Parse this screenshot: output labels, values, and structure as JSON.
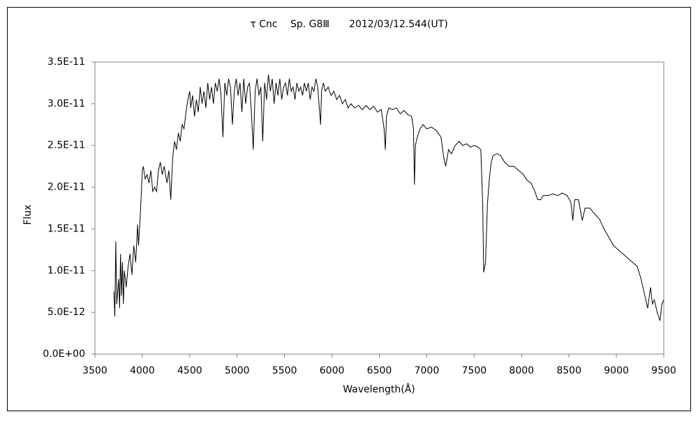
{
  "chart_data": {
    "type": "line",
    "title": "τ Cnc　 Sp. G8Ⅲ　　2012/03/12.544(UT)",
    "x_label": "Wavelength(Å)",
    "y_label": "Flux",
    "color": "#000000",
    "xlim": [
      3500,
      9500
    ],
    "xticks": [
      3500,
      4000,
      4500,
      5000,
      5500,
      6000,
      6500,
      7000,
      7500,
      8000,
      8500,
      9000,
      9500
    ],
    "ylim": [
      0,
      3.5e-11
    ],
    "yticks": [
      {
        "value": 0,
        "label": "0.0E+00"
      },
      {
        "value": 5e-12,
        "label": "5.0E-12"
      },
      {
        "value": 1e-11,
        "label": "1.0E-11"
      },
      {
        "value": 1.5e-11,
        "label": "1.5E-11"
      },
      {
        "value": 2e-11,
        "label": "2.0E-11"
      },
      {
        "value": 2.5e-11,
        "label": "2.5E-11"
      },
      {
        "value": 3e-11,
        "label": "3.0E-11"
      },
      {
        "value": 3.5e-11,
        "label": "3.5E-11"
      }
    ],
    "x": [
      3700,
      3710,
      3720,
      3730,
      3750,
      3760,
      3770,
      3780,
      3790,
      3800,
      3810,
      3830,
      3850,
      3870,
      3890,
      3910,
      3930,
      3950,
      3960,
      3980,
      4000,
      4010,
      4030,
      4050,
      4070,
      4090,
      4110,
      4130,
      4150,
      4170,
      4190,
      4210,
      4230,
      4260,
      4280,
      4300,
      4320,
      4340,
      4360,
      4380,
      4400,
      4420,
      4440,
      4460,
      4480,
      4500,
      4510,
      4530,
      4550,
      4570,
      4590,
      4610,
      4630,
      4650,
      4670,
      4690,
      4710,
      4730,
      4750,
      4770,
      4790,
      4810,
      4830,
      4850,
      4870,
      4890,
      4910,
      4930,
      4950,
      4970,
      4990,
      5010,
      5030,
      5050,
      5070,
      5090,
      5110,
      5130,
      5150,
      5170,
      5190,
      5210,
      5230,
      5250,
      5270,
      5290,
      5310,
      5330,
      5350,
      5370,
      5390,
      5410,
      5430,
      5450,
      5470,
      5490,
      5510,
      5530,
      5550,
      5570,
      5590,
      5610,
      5630,
      5650,
      5670,
      5690,
      5710,
      5730,
      5750,
      5770,
      5790,
      5810,
      5830,
      5850,
      5880,
      5890,
      5910,
      5930,
      5960,
      5990,
      6020,
      6050,
      6080,
      6110,
      6140,
      6170,
      6200,
      6240,
      6280,
      6320,
      6360,
      6400,
      6440,
      6480,
      6520,
      6550,
      6563,
      6575,
      6600,
      6640,
      6680,
      6720,
      6760,
      6800,
      6840,
      6860,
      6870,
      6880,
      6900,
      6930,
      6960,
      7000,
      7050,
      7100,
      7150,
      7180,
      7200,
      7230,
      7260,
      7300,
      7340,
      7380,
      7420,
      7460,
      7500,
      7540,
      7570,
      7590,
      7600,
      7620,
      7640,
      7660,
      7680,
      7700,
      7740,
      7780,
      7820,
      7870,
      7920,
      7970,
      8020,
      8060,
      8100,
      8140,
      8170,
      8200,
      8230,
      8280,
      8330,
      8380,
      8430,
      8480,
      8520,
      8540,
      8560,
      8600,
      8640,
      8670,
      8720,
      8770,
      8820,
      8870,
      8920,
      8970,
      9020,
      9070,
      9120,
      9170,
      9220,
      9260,
      9300,
      9330,
      9360,
      9380,
      9400,
      9430,
      9460,
      9480,
      9500
    ],
    "values": [
      7.5e-12,
      4.5e-12,
      1.35e-11,
      6e-12,
      9e-12,
      5.5e-12,
      1.2e-11,
      7e-12,
      1.1e-11,
      6e-12,
      1e-11,
      8e-12,
      1.05e-11,
      1.2e-11,
      9.5e-12,
      1.3e-11,
      1.1e-11,
      1.55e-11,
      1.3e-11,
      1.7e-11,
      2.2e-11,
      2.25e-11,
      2.1e-11,
      2.15e-11,
      2.05e-11,
      2.2e-11,
      1.95e-11,
      2e-11,
      1.95e-11,
      2.2e-11,
      2.3e-11,
      2.15e-11,
      2.25e-11,
      2.05e-11,
      2.2e-11,
      1.85e-11,
      2.35e-11,
      2.55e-11,
      2.45e-11,
      2.65e-11,
      2.55e-11,
      2.75e-11,
      2.7e-11,
      2.9e-11,
      3.05e-11,
      3.15e-11,
      2.95e-11,
      3.1e-11,
      2.85e-11,
      3.05e-11,
      2.9e-11,
      3.2e-11,
      3e-11,
      3.15e-11,
      2.95e-11,
      3.25e-11,
      3.05e-11,
      3.2e-11,
      3e-11,
      3.25e-11,
      3.15e-11,
      3.3e-11,
      3.1e-11,
      2.6e-11,
      3.25e-11,
      3.1e-11,
      3.3e-11,
      3.2e-11,
      2.75e-11,
      3.15e-11,
      3.3e-11,
      3.1e-11,
      3.25e-11,
      2.9e-11,
      3.3e-11,
      3e-11,
      3.2e-11,
      3.25e-11,
      2.9e-11,
      2.45e-11,
      3.15e-11,
      3.3e-11,
      3.1e-11,
      3.2e-11,
      2.55e-11,
      3.25e-11,
      3.05e-11,
      3.35e-11,
      3.15e-11,
      3.3e-11,
      3e-11,
      3.25e-11,
      3.1e-11,
      3.3e-11,
      3.05e-11,
      3.2e-11,
      3.25e-11,
      3.1e-11,
      3.3e-11,
      3.15e-11,
      3.2e-11,
      3.05e-11,
      3.25e-11,
      3.15e-11,
      3.2e-11,
      3.1e-11,
      3.25e-11,
      3.15e-11,
      3.25e-11,
      3.05e-11,
      3.2e-11,
      3.15e-11,
      3.3e-11,
      3.2e-11,
      2.75e-11,
      3.15e-11,
      3.25e-11,
      3.15e-11,
      3.2e-11,
      3.1e-11,
      3.15e-11,
      3.05e-11,
      3.1e-11,
      3e-11,
      3.05e-11,
      2.95e-11,
      3e-11,
      2.95e-11,
      2.98e-11,
      2.93e-11,
      2.98e-11,
      2.93e-11,
      2.97e-11,
      2.9e-11,
      2.93e-11,
      2.7e-11,
      2.45e-11,
      2.85e-11,
      2.95e-11,
      2.93e-11,
      2.95e-11,
      2.88e-11,
      2.92e-11,
      2.87e-11,
      2.85e-11,
      2.7e-11,
      2.03e-11,
      2.5e-11,
      2.6e-11,
      2.7e-11,
      2.75e-11,
      2.7e-11,
      2.72e-11,
      2.68e-11,
      2.6e-11,
      2.35e-11,
      2.25e-11,
      2.45e-11,
      2.4e-11,
      2.5e-11,
      2.55e-11,
      2.5e-11,
      2.52e-11,
      2.48e-11,
      2.5e-11,
      2.48e-11,
      2.45e-11,
      1.8e-11,
      9.8e-12,
      1.1e-11,
      1.8e-11,
      2.1e-11,
      2.3e-11,
      2.38e-11,
      2.4e-11,
      2.38e-11,
      2.3e-11,
      2.25e-11,
      2.25e-11,
      2.2e-11,
      2.15e-11,
      2.08e-11,
      2.05e-11,
      1.95e-11,
      1.85e-11,
      1.85e-11,
      1.9e-11,
      1.9e-11,
      1.92e-11,
      1.9e-11,
      1.93e-11,
      1.9e-11,
      1.82e-11,
      1.6e-11,
      1.85e-11,
      1.85e-11,
      1.6e-11,
      1.75e-11,
      1.75e-11,
      1.68e-11,
      1.62e-11,
      1.5e-11,
      1.4e-11,
      1.3e-11,
      1.25e-11,
      1.2e-11,
      1.15e-11,
      1.1e-11,
      1.05e-11,
      9e-12,
      7e-12,
      5.5e-12,
      8e-12,
      6e-12,
      6.5e-12,
      5e-12,
      4e-12,
      6e-12,
      6.5e-12
    ]
  }
}
